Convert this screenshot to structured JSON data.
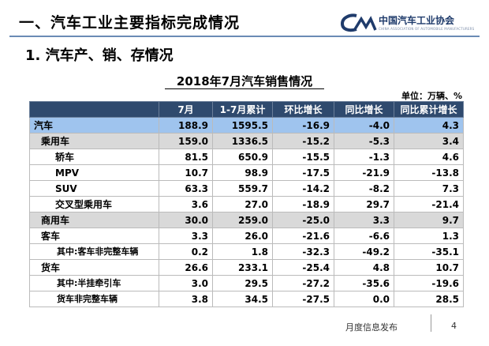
{
  "header": {
    "section_title": "一、汽车工业主要指标完成情况",
    "logo_cn": "中国汽车工业协会",
    "logo_en": "CHINA ASSOCIATION OF AUTOMOBILE MANUFACTURERS",
    "logo_icon": "caam-logo-mark",
    "accent_color": "#2f4a6e"
  },
  "subtitle": "1. 汽车产、销、存情况",
  "table": {
    "title": "2018年7月汽车销售情况",
    "unit": "单位：万辆、%",
    "columns": [
      "",
      "7月",
      "1-7月累计",
      "环比增长",
      "同比增长",
      "同比累计增长"
    ],
    "rows": [
      {
        "label": "汽车",
        "cells": [
          "188.9",
          "1595.5",
          "-16.9",
          "-4.0",
          "4.3"
        ]
      },
      {
        "label": "乘用车",
        "cells": [
          "159.0",
          "1336.5",
          "-15.2",
          "-5.3",
          "3.4"
        ]
      },
      {
        "label": "轿车",
        "cells": [
          "81.5",
          "650.9",
          "-15.5",
          "-1.3",
          "4.6"
        ]
      },
      {
        "label": "MPV",
        "cells": [
          "10.7",
          "98.9",
          "-17.5",
          "-21.9",
          "-13.8"
        ]
      },
      {
        "label": "SUV",
        "cells": [
          "63.3",
          "559.7",
          "-14.2",
          "-8.2",
          "7.3"
        ]
      },
      {
        "label": "交叉型乘用车",
        "cells": [
          "3.6",
          "27.0",
          "-18.9",
          "29.7",
          "-21.4"
        ]
      },
      {
        "label": "商用车",
        "cells": [
          "30.0",
          "259.0",
          "-25.0",
          "3.3",
          "9.7"
        ]
      },
      {
        "label": "客车",
        "cells": [
          "3.3",
          "26.0",
          "-21.6",
          "-6.6",
          "1.3"
        ]
      },
      {
        "label": "其中:客车非完整车辆",
        "cells": [
          "0.2",
          "1.8",
          "-32.3",
          "-49.2",
          "-35.1"
        ]
      },
      {
        "label": "货车",
        "cells": [
          "26.6",
          "233.1",
          "-25.4",
          "4.8",
          "10.7"
        ]
      },
      {
        "label": "其中:半挂牵引车",
        "cells": [
          "3.0",
          "29.5",
          "-27.2",
          "-35.6",
          "-19.6"
        ]
      },
      {
        "label": "货车非完整车辆",
        "cells": [
          "3.8",
          "34.5",
          "-27.5",
          "0.0",
          "28.5"
        ]
      }
    ]
  },
  "footer": {
    "text": "月度信息发布",
    "page": "4"
  }
}
